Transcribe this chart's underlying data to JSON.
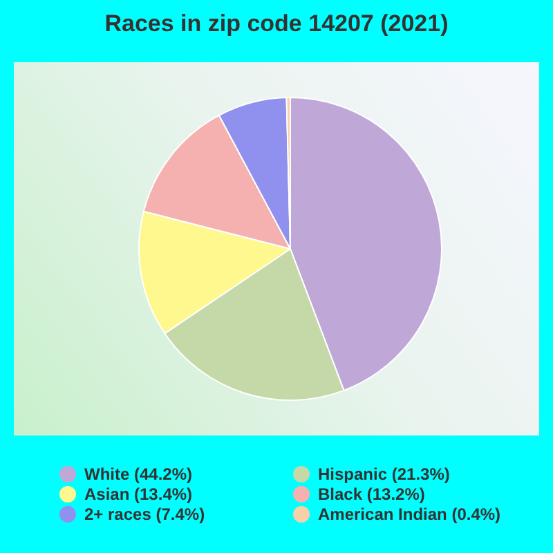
{
  "chart_data": {
    "type": "pie",
    "title": "Races in zip code 14207 (2021)",
    "categories": [
      "White (44.2%)",
      "Hispanic (21.3%)",
      "Asian (13.4%)",
      "Black (13.2%)",
      "2+ races (7.4%)",
      "American Indian (0.4%)"
    ],
    "values": [
      44.2,
      21.3,
      13.4,
      13.2,
      7.4,
      0.4
    ],
    "colors": [
      "#bfa8d8",
      "#c5d8a8",
      "#fff88f",
      "#f5b0b0",
      "#9090ee",
      "#f8d0a8"
    ],
    "legend": "bottom"
  }
}
